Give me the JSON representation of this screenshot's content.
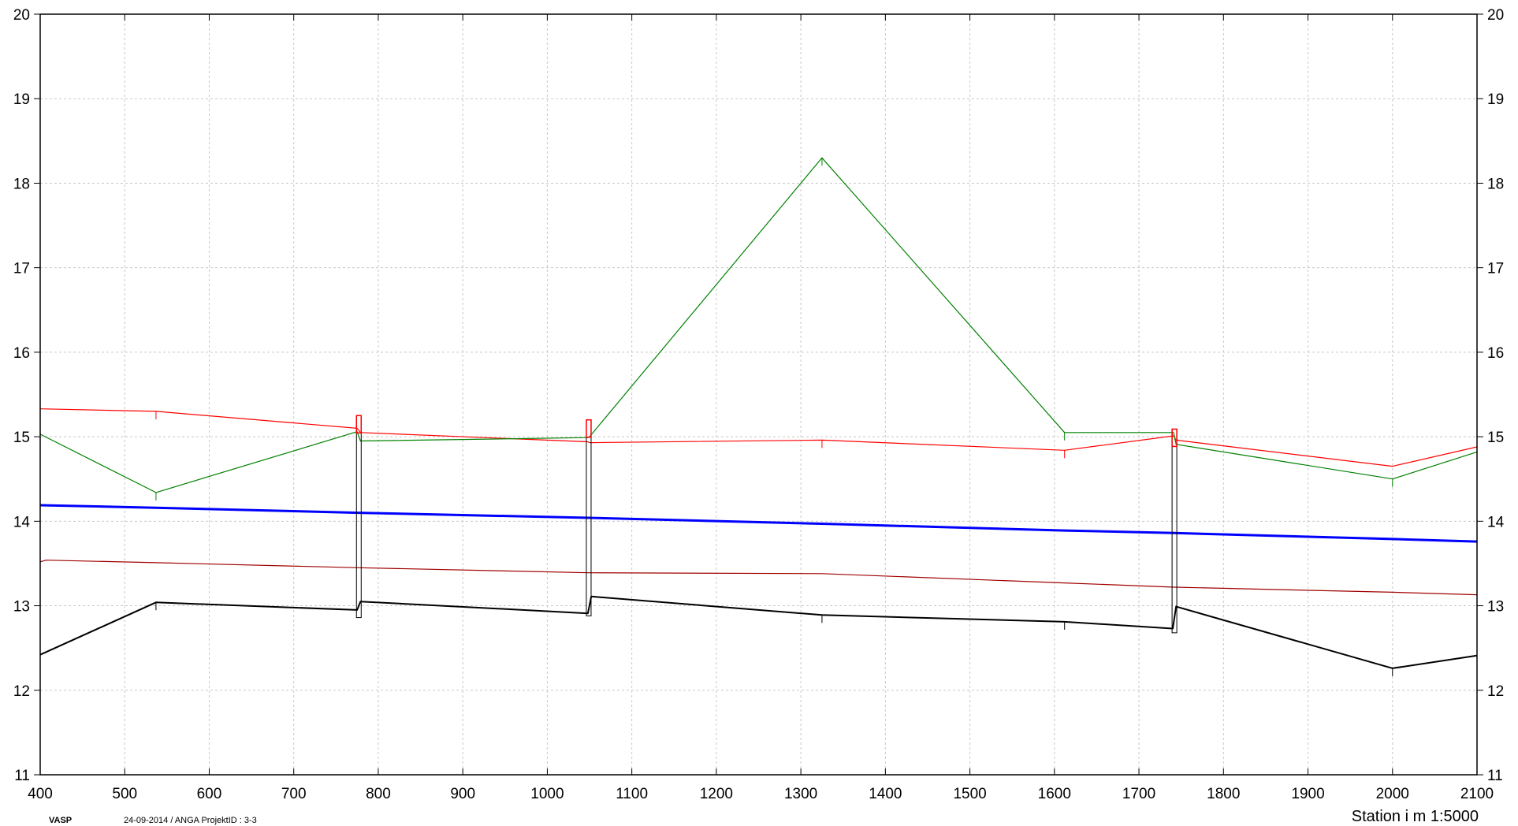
{
  "footer": {
    "program": "VASP",
    "meta": "24-09-2014 / ANGA   ProjektID : 3-3",
    "xlabel": "Station i m  1:5000"
  },
  "chart_data": {
    "type": "line",
    "title": "",
    "xlabel": "Station i m  1:5000",
    "ylabel": "",
    "xlim": [
      400,
      2100
    ],
    "ylim": [
      11,
      20
    ],
    "grid": true,
    "x_ticks": [
      400,
      500,
      600,
      700,
      800,
      900,
      1000,
      1100,
      1200,
      1300,
      1400,
      1500,
      1600,
      1700,
      1800,
      1900,
      2000,
      2100
    ],
    "y_ticks": [
      11,
      12,
      13,
      14,
      15,
      16,
      17,
      18,
      19,
      20
    ],
    "colors": {
      "red": "#ff0000",
      "green": "#008000",
      "blue": "#0000ff",
      "darkred": "#a00000",
      "black": "#000000",
      "grid": "#c8c8c8"
    },
    "series": [
      {
        "key": "red",
        "color": "#ff0000",
        "width": 1.2,
        "x": [
          400,
          537,
          775,
          779,
          1048,
          1050,
          1325,
          1612,
          1741,
          1744,
          2000,
          2100
        ],
        "y": [
          15.33,
          15.3,
          15.1,
          15.05,
          14.94,
          14.93,
          14.96,
          14.84,
          15.01,
          14.96,
          14.65,
          14.88
        ]
      },
      {
        "key": "green",
        "color": "#008000",
        "width": 1.2,
        "x": [
          400,
          537,
          775,
          779,
          1048,
          1050,
          1325,
          1612,
          1741,
          1744,
          2000,
          2100
        ],
        "y": [
          15.03,
          14.34,
          15.06,
          14.95,
          14.99,
          15.0,
          18.3,
          15.05,
          15.05,
          14.91,
          14.5,
          14.82
        ]
      },
      {
        "key": "blue",
        "color": "#0000ff",
        "width": 3,
        "x": [
          400,
          537,
          777,
          1049,
          1325,
          1612,
          1742,
          2000,
          2100
        ],
        "y": [
          14.19,
          14.16,
          14.1,
          14.04,
          13.97,
          13.89,
          13.86,
          13.79,
          13.76
        ]
      },
      {
        "key": "darkred",
        "color": "#a00000",
        "width": 1.2,
        "x": [
          400,
          407,
          537,
          777,
          1049,
          1325,
          1612,
          1742,
          2000,
          2100
        ],
        "y": [
          13.52,
          13.54,
          13.51,
          13.45,
          13.39,
          13.38,
          13.27,
          13.22,
          13.16,
          13.13
        ]
      },
      {
        "key": "black",
        "color": "#000000",
        "width": 2,
        "x": [
          400,
          537,
          775,
          779,
          1048,
          1052,
          1325,
          1612,
          1740,
          1744,
          2000,
          2100
        ],
        "y": [
          12.42,
          13.04,
          12.95,
          13.05,
          12.91,
          13.11,
          12.89,
          12.81,
          12.73,
          12.99,
          12.26,
          12.41
        ]
      }
    ],
    "structures": [
      {
        "x": 777,
        "top": 15.25,
        "bottom": 12.86
      },
      {
        "x": 1049,
        "top": 15.2,
        "bottom": 12.88
      },
      {
        "x": 1742,
        "top": 15.09,
        "bottom": 12.68
      }
    ],
    "node_ticks": {
      "red": [
        537,
        1325,
        1612
      ],
      "green": [
        537,
        1325,
        1612,
        2000
      ],
      "black": [
        537,
        1325,
        1612,
        2000
      ]
    }
  }
}
